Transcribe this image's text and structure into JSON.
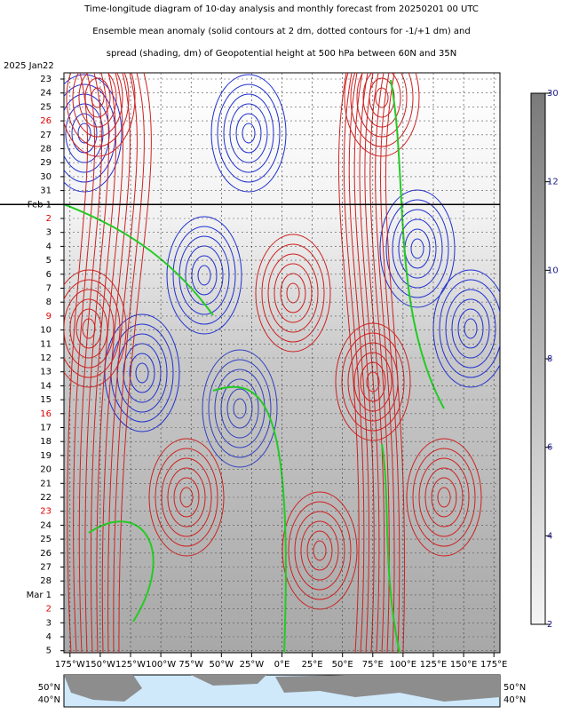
{
  "chart_data": {
    "type": "hovmoller",
    "title": [
      "Time-longitude diagram of 10-day analysis and monthly forecast from 20250201 00 UTC",
      "Ensemble mean anomaly (solid contours at 2 dm, dotted contours for -1/+1 dm) and",
      "spread (shading, dm) of Geopotential height at 500 hPa between 60N and 35N"
    ],
    "start_label": "2025 Jan22",
    "rows": [
      {
        "label": "23",
        "color": "#000000"
      },
      {
        "label": "24",
        "color": "#000000"
      },
      {
        "label": "25",
        "color": "#000000"
      },
      {
        "label": "26",
        "color": "#dd0000"
      },
      {
        "label": "27",
        "color": "#000000"
      },
      {
        "label": "28",
        "color": "#000000"
      },
      {
        "label": "29",
        "color": "#000000"
      },
      {
        "label": "30",
        "color": "#000000"
      },
      {
        "label": "31",
        "color": "#000000"
      },
      {
        "label": "Feb 1",
        "color": "#000000"
      },
      {
        "label": "2",
        "color": "#dd0000"
      },
      {
        "label": "3",
        "color": "#000000"
      },
      {
        "label": "4",
        "color": "#000000"
      },
      {
        "label": "5",
        "color": "#000000"
      },
      {
        "label": "6",
        "color": "#000000"
      },
      {
        "label": "7",
        "color": "#000000"
      },
      {
        "label": "8",
        "color": "#000000"
      },
      {
        "label": "9",
        "color": "#dd0000"
      },
      {
        "label": "10",
        "color": "#000000"
      },
      {
        "label": "11",
        "color": "#000000"
      },
      {
        "label": "12",
        "color": "#000000"
      },
      {
        "label": "13",
        "color": "#000000"
      },
      {
        "label": "14",
        "color": "#000000"
      },
      {
        "label": "15",
        "color": "#000000"
      },
      {
        "label": "16",
        "color": "#dd0000"
      },
      {
        "label": "17",
        "color": "#000000"
      },
      {
        "label": "18",
        "color": "#000000"
      },
      {
        "label": "19",
        "color": "#000000"
      },
      {
        "label": "20",
        "color": "#000000"
      },
      {
        "label": "21",
        "color": "#000000"
      },
      {
        "label": "22",
        "color": "#000000"
      },
      {
        "label": "23",
        "color": "#dd0000"
      },
      {
        "label": "24",
        "color": "#000000"
      },
      {
        "label": "25",
        "color": "#000000"
      },
      {
        "label": "26",
        "color": "#000000"
      },
      {
        "label": "27",
        "color": "#000000"
      },
      {
        "label": "28",
        "color": "#000000"
      },
      {
        "label": "Mar 1",
        "color": "#000000"
      },
      {
        "label": "2",
        "color": "#dd0000"
      },
      {
        "label": "3",
        "color": "#000000"
      },
      {
        "label": "4",
        "color": "#000000"
      },
      {
        "label": "5",
        "color": "#000000"
      }
    ],
    "xlim": [
      -180,
      180
    ],
    "xticks": [
      {
        "value": -175,
        "label": "175°W"
      },
      {
        "value": -150,
        "label": "150°W"
      },
      {
        "value": -125,
        "label": "125°W"
      },
      {
        "value": -100,
        "label": "100°W"
      },
      {
        "value": -75,
        "label": "75°W"
      },
      {
        "value": -50,
        "label": "50°W"
      },
      {
        "value": -25,
        "label": "25°W"
      },
      {
        "value": 0,
        "label": "0°E"
      },
      {
        "value": 25,
        "label": "25°E"
      },
      {
        "value": 50,
        "label": "50°E"
      },
      {
        "value": 75,
        "label": "75°E"
      },
      {
        "value": 100,
        "label": "100°E"
      },
      {
        "value": 125,
        "label": "125°E"
      },
      {
        "value": 150,
        "label": "150°E"
      },
      {
        "value": 175,
        "label": "175°E"
      }
    ],
    "colorbar": {
      "ticks": [
        30,
        12,
        10,
        8,
        6,
        4,
        2
      ]
    },
    "map_labels": [
      "50°N",
      "40°N"
    ]
  }
}
